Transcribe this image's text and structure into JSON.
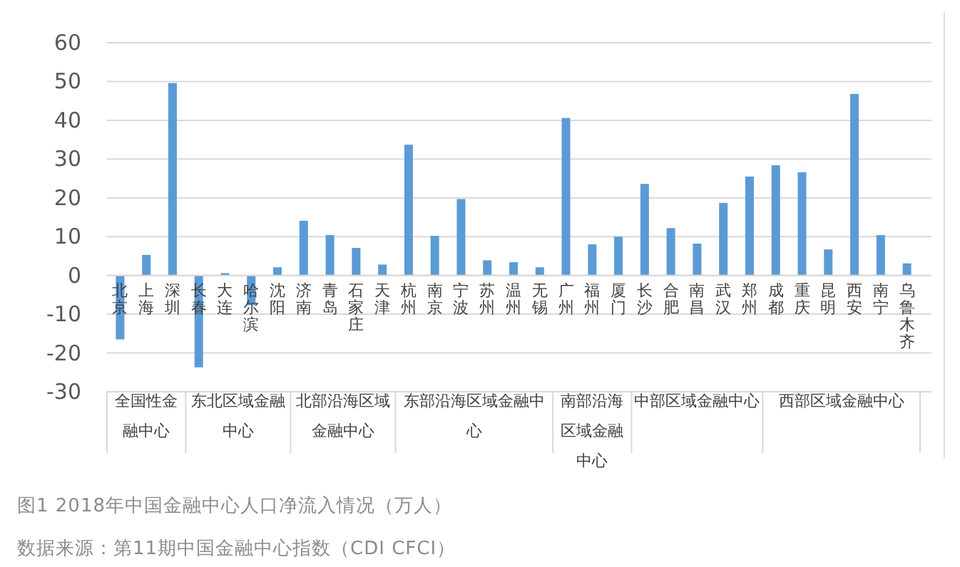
{
  "chart_data": {
    "type": "bar",
    "title": "图1 2018年中国金融中心人口净流入情况（万人）",
    "categories": [
      "北京",
      "上海",
      "深圳",
      "长春",
      "大连",
      "哈尔滨",
      "沈阳",
      "济南",
      "青岛",
      "石家庄",
      "天津",
      "杭州",
      "南京",
      "宁波",
      "苏州",
      "温州",
      "无锡",
      "广州",
      "福州",
      "厦门",
      "长沙",
      "合肥",
      "南昌",
      "武汉",
      "郑州",
      "成都",
      "重庆",
      "昆明",
      "西安",
      "南宁",
      "乌鲁木齐"
    ],
    "values": [
      -16.5,
      5.3,
      49.6,
      -23.7,
      0.6,
      -7.7,
      2.1,
      14.1,
      10.4,
      7.1,
      2.8,
      33.7,
      10.2,
      19.7,
      3.9,
      3.4,
      2.1,
      40.6,
      8.0,
      10.0,
      23.6,
      12.2,
      8.2,
      18.7,
      25.5,
      28.4,
      26.6,
      6.7,
      46.8,
      10.4,
      3.1
    ],
    "color": "#5b9bd5",
    "ylim": [
      -30,
      60
    ],
    "yticks": [
      -30,
      -20,
      -10,
      0,
      10,
      20,
      30,
      40,
      50,
      60
    ],
    "grid": "y",
    "annotations": [
      "全国性金融中心",
      "东北区域金融中心",
      "北部沿海区域金融中心",
      "东部沿海区域金融中心",
      "南部沿海区域金融中心",
      "中部区域金融中心",
      "西部区域金融中心",
      "数据来源：第11期中国金融中心指数（CDI CFCI）"
    ]
  }
}
